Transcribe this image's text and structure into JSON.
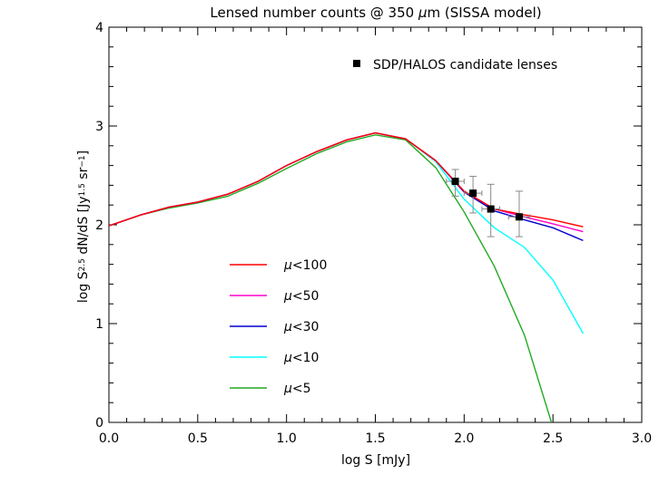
{
  "chart_data": {
    "type": "line",
    "title": "Lensed number counts @ 350 μm (SISSA model)",
    "title_prefix": "Lensed number counts @ 350 ",
    "title_mu": "μ",
    "title_suffix": "m (SISSA model)",
    "xlabel": "log S [mJy]",
    "ylabel_parts": [
      "log S",
      "2.5",
      " dN/dS [Jy",
      "1.5",
      " sr",
      "−1",
      "]"
    ],
    "xlim": [
      0.0,
      3.0
    ],
    "ylim": [
      0,
      4
    ],
    "x_ticks": [
      "0.0",
      "0.5",
      "1.0",
      "1.5",
      "2.0",
      "2.5",
      "3.0"
    ],
    "x_tick_values": [
      0.0,
      0.5,
      1.0,
      1.5,
      2.0,
      2.5,
      3.0
    ],
    "y_ticks": [
      "0",
      "1",
      "2",
      "3",
      "4"
    ],
    "y_tick_values": [
      0,
      1,
      2,
      3,
      4
    ],
    "grid": false,
    "legend_placement": "bottom-left",
    "series": [
      {
        "name": "μ<100",
        "color": "#ff0000",
        "x": [
          0.0,
          0.18,
          0.34,
          0.5,
          0.67,
          0.84,
          1.0,
          1.17,
          1.34,
          1.5,
          1.67,
          1.84,
          2.0,
          2.17,
          2.34,
          2.5,
          2.67
        ],
        "y": [
          1.99,
          2.1,
          2.18,
          2.23,
          2.31,
          2.44,
          2.6,
          2.74,
          2.86,
          2.93,
          2.87,
          2.65,
          2.34,
          2.16,
          2.1,
          2.05,
          1.98
        ]
      },
      {
        "name": "μ<50",
        "color": "#ff00c8",
        "x": [
          0.0,
          0.18,
          0.34,
          0.5,
          0.67,
          0.84,
          1.0,
          1.17,
          1.34,
          1.5,
          1.67,
          1.84,
          2.0,
          2.17,
          2.34,
          2.5,
          2.67
        ],
        "y": [
          1.99,
          2.1,
          2.18,
          2.23,
          2.31,
          2.44,
          2.6,
          2.74,
          2.86,
          2.93,
          2.87,
          2.65,
          2.34,
          2.16,
          2.08,
          2.01,
          1.93
        ]
      },
      {
        "name": "μ<30",
        "color": "#0000cd",
        "x": [
          0.0,
          0.18,
          0.34,
          0.5,
          0.67,
          0.84,
          1.0,
          1.17,
          1.34,
          1.5,
          1.67,
          1.84,
          2.0,
          2.17,
          2.34,
          2.5,
          2.67
        ],
        "y": [
          1.99,
          2.1,
          2.18,
          2.23,
          2.31,
          2.44,
          2.6,
          2.74,
          2.86,
          2.93,
          2.87,
          2.65,
          2.33,
          2.14,
          2.05,
          1.97,
          1.84
        ]
      },
      {
        "name": "μ<10",
        "color": "#00ffff",
        "x": [
          0.0,
          0.18,
          0.34,
          0.5,
          0.67,
          0.84,
          1.0,
          1.17,
          1.34,
          1.5,
          1.67,
          1.84,
          2.0,
          2.17,
          2.34,
          2.5,
          2.67
        ],
        "y": [
          1.99,
          2.1,
          2.18,
          2.23,
          2.31,
          2.44,
          2.6,
          2.74,
          2.86,
          2.93,
          2.87,
          2.64,
          2.26,
          1.97,
          1.77,
          1.44,
          0.9
        ]
      },
      {
        "name": "μ<5",
        "color": "#22aa22",
        "x": [
          0.0,
          0.18,
          0.34,
          0.5,
          0.67,
          0.84,
          1.0,
          1.17,
          1.34,
          1.5,
          1.67,
          1.84,
          2.0,
          2.17,
          2.34,
          2.5
        ],
        "y": [
          1.99,
          2.1,
          2.17,
          2.22,
          2.29,
          2.42,
          2.57,
          2.72,
          2.84,
          2.91,
          2.86,
          2.58,
          2.13,
          1.58,
          0.88,
          -0.05
        ]
      }
    ],
    "points": {
      "name": "SDP/HALOS candidate lenses",
      "color": "#000000",
      "x": [
        1.95,
        2.05,
        2.15,
        2.31
      ],
      "y": [
        2.44,
        2.32,
        2.16,
        2.08
      ],
      "y_err_low": [
        0.15,
        0.2,
        0.28,
        0.2
      ],
      "y_err_high": [
        0.12,
        0.17,
        0.25,
        0.26
      ],
      "x_err": [
        0.05,
        0.05,
        0.05,
        0.06
      ]
    }
  }
}
